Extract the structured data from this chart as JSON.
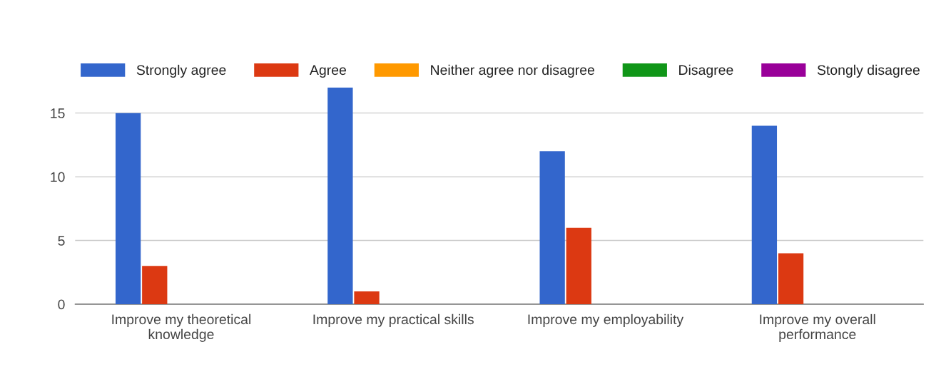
{
  "chart_data": {
    "type": "bar",
    "categories": [
      "Improve my theoretical\nknowledge",
      "Improve my practical skills",
      "Improve my employability",
      "Improve my overall\nperformance"
    ],
    "series": [
      {
        "name": "Strongly agree",
        "color": "#3366cc",
        "values": [
          15,
          17,
          12,
          14
        ]
      },
      {
        "name": "Agree",
        "color": "#dc3912",
        "values": [
          3,
          1,
          6,
          4
        ]
      },
      {
        "name": "Neither agree nor disagree",
        "color": "#ff9900",
        "values": [
          0,
          0,
          0,
          0
        ]
      },
      {
        "name": "Disagree",
        "color": "#109618",
        "values": [
          0,
          0,
          0,
          0
        ]
      },
      {
        "name": "Stongly disagree",
        "color": "#990099",
        "values": [
          0,
          0,
          0,
          0
        ]
      }
    ],
    "ylim": [
      0,
      17
    ],
    "yticks": [
      0,
      5,
      10,
      15
    ],
    "grid": "y",
    "legend": "top"
  }
}
